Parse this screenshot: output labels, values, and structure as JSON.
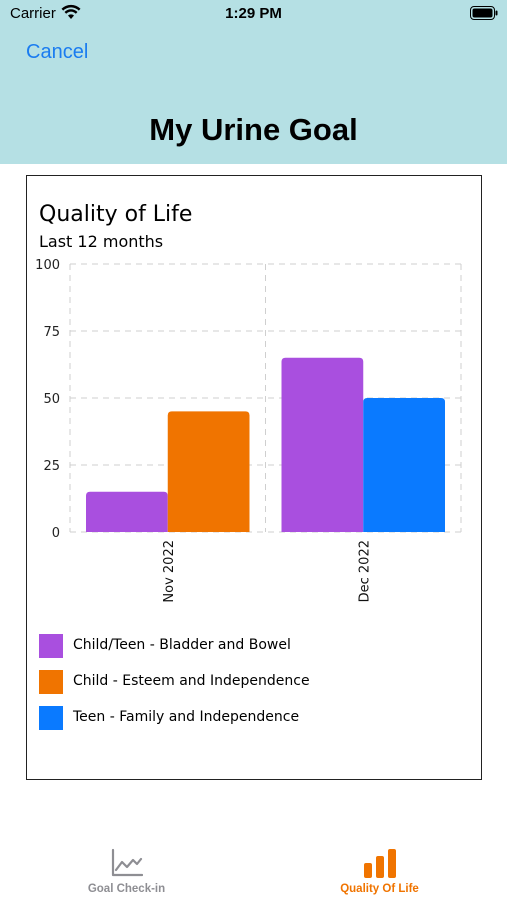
{
  "status_bar": {
    "carrier": "Carrier",
    "time": "1:29 PM"
  },
  "header": {
    "cancel_label": "Cancel",
    "title": "My Urine Goal"
  },
  "chart_data": {
    "type": "bar",
    "title": "Quality of Life",
    "subtitle": "Last 12 months",
    "categories": [
      "Nov 2022",
      "Dec 2022"
    ],
    "series": [
      {
        "name": "Child/Teen - Bladder and Bowel",
        "color": "#a94fdf",
        "values": [
          15,
          65
        ]
      },
      {
        "name": "Child - Esteem and Independence",
        "color": "#f07400",
        "values": [
          45,
          null
        ]
      },
      {
        "name": "Teen - Family and Independence",
        "color": "#0a7aff",
        "values": [
          null,
          50
        ]
      }
    ],
    "ylim": [
      0,
      100
    ],
    "yticks": [
      0,
      25,
      50,
      75,
      100
    ],
    "grid": true,
    "legend_position": "bottom"
  },
  "tabbar": {
    "tabs": [
      {
        "label": "Goal Check-in",
        "icon": "line-chart-icon",
        "color": "#8e8e93",
        "active": false
      },
      {
        "label": "Quality Of Life",
        "icon": "bar-chart-icon",
        "color": "#f07400",
        "active": true
      }
    ]
  }
}
